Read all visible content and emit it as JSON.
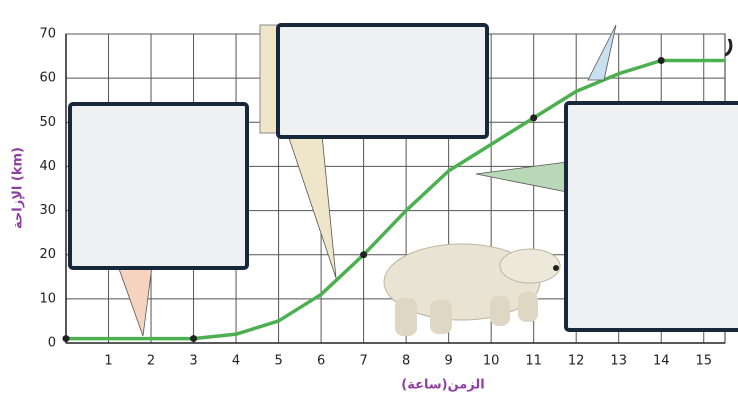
{
  "chart_data": {
    "type": "line",
    "x_label": "الزمن(ساعة)",
    "y_label": "الإزاحة (km)",
    "corner_text": "ن",
    "x": [
      0,
      3,
      4,
      5,
      6,
      7,
      8,
      9,
      10,
      11,
      12,
      13,
      14,
      15.5
    ],
    "series": [
      {
        "color": "#4cb050",
        "values": [
          1,
          1,
          2,
          5,
          11,
          20,
          30,
          39,
          45,
          51,
          57,
          61,
          64,
          64
        ]
      }
    ],
    "points": {
      "x": [
        0,
        3,
        7,
        11,
        14
      ],
      "values": [
        1,
        1,
        20,
        51,
        64
      ],
      "color": "#222"
    },
    "xlim": [
      0,
      15.5
    ],
    "ylim": [
      0,
      70
    ],
    "xticks": [
      1,
      2,
      3,
      4,
      5,
      6,
      7,
      8,
      9,
      10,
      11,
      12,
      13,
      14,
      15
    ],
    "yticks": [
      0,
      10,
      20,
      30,
      40,
      50,
      60,
      70
    ],
    "grid": true
  }
}
